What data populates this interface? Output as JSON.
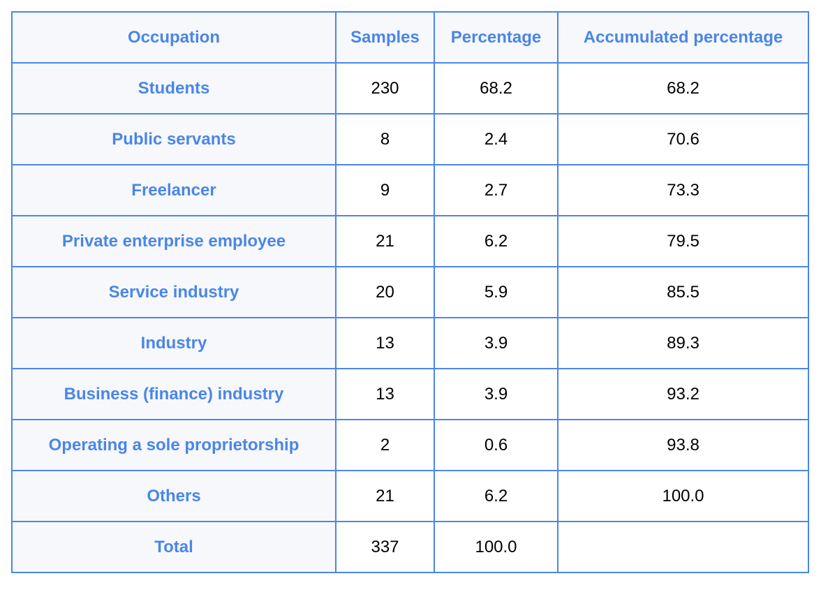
{
  "table": {
    "headers": {
      "occupation": "Occupation",
      "samples": "Samples",
      "percentage": "Percentage",
      "accumulated": "Accumulated percentage"
    },
    "rows": [
      {
        "occupation": "Students",
        "samples": "230",
        "percentage": "68.2",
        "accumulated": "68.2"
      },
      {
        "occupation": "Public servants",
        "samples": "8",
        "percentage": "2.4",
        "accumulated": "70.6"
      },
      {
        "occupation": "Freelancer",
        "samples": "9",
        "percentage": "2.7",
        "accumulated": "73.3"
      },
      {
        "occupation": "Private enterprise employee",
        "samples": "21",
        "percentage": "6.2",
        "accumulated": "79.5"
      },
      {
        "occupation": "Service industry",
        "samples": "20",
        "percentage": "5.9",
        "accumulated": "85.5"
      },
      {
        "occupation": "Industry",
        "samples": "13",
        "percentage": "3.9",
        "accumulated": "89.3"
      },
      {
        "occupation": "Business (finance) industry",
        "samples": "13",
        "percentage": "3.9",
        "accumulated": "93.2"
      },
      {
        "occupation": "Operating a sole proprietorship",
        "samples": "2",
        "percentage": "0.6",
        "accumulated": "93.8"
      },
      {
        "occupation": "Others",
        "samples": "21",
        "percentage": "6.2",
        "accumulated": "100.0"
      }
    ],
    "total": {
      "occupation": "Total",
      "samples": "337",
      "percentage": "100.0",
      "accumulated": ""
    }
  },
  "colors": {
    "accent": "#4a86e8",
    "label_background": "#f7f8fb",
    "value_text": "#000000"
  }
}
